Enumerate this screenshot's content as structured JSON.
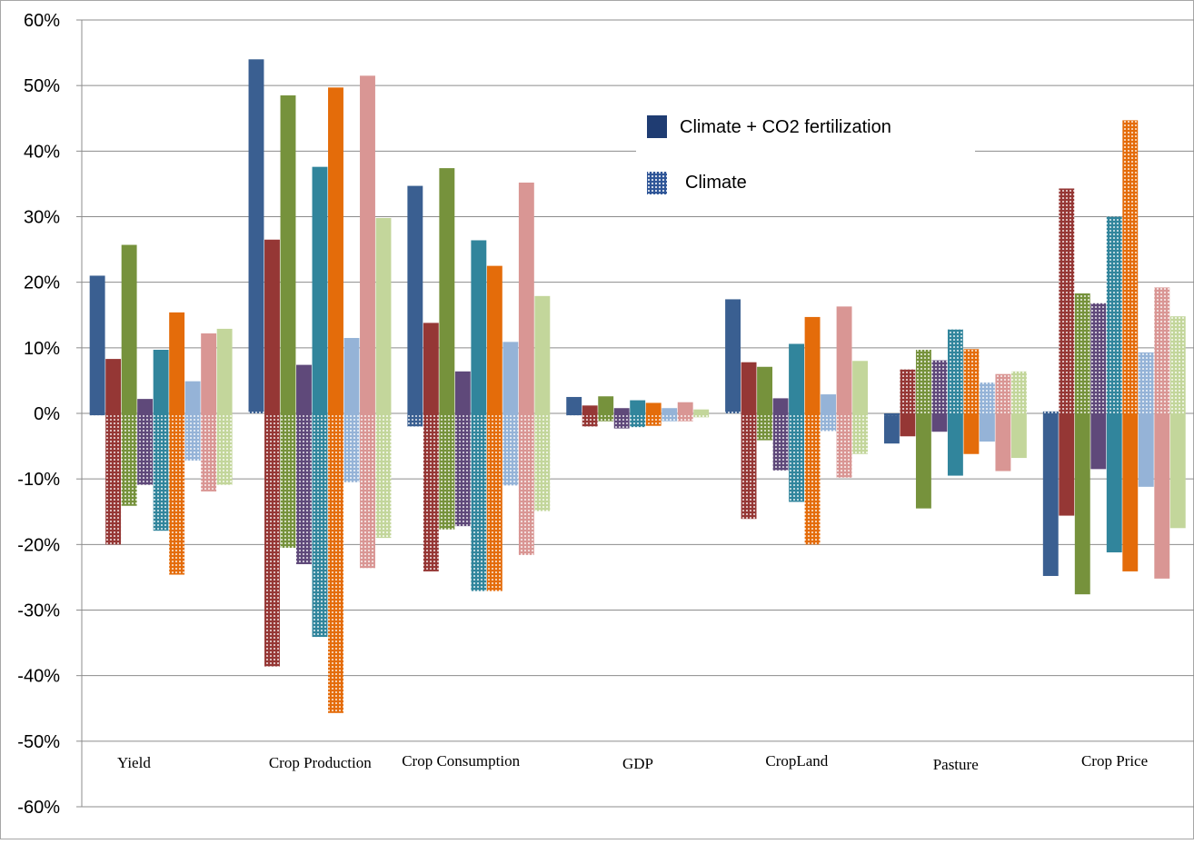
{
  "chart_data": {
    "type": "bar",
    "title": "",
    "xlabel": "",
    "ylabel": "",
    "ylim": [
      -0.6,
      0.6
    ],
    "yticks": [
      "60%",
      "50%",
      "40%",
      "30%",
      "20%",
      "10%",
      "0%",
      "-10%",
      "-20%",
      "-30%",
      "-40%",
      "-50%",
      "-60%"
    ],
    "categories": [
      "Yield",
      "Crop Production",
      "Crop Consumption",
      "GDP",
      "CropLand",
      "Pasture",
      "Crop Price"
    ],
    "grid": "horizontal",
    "legend": {
      "placement": "top-right",
      "entries": [
        "Climate + CO2 fertilization",
        "Climate"
      ]
    },
    "series_colors": [
      "#3A5F91",
      "#953735",
      "#76923C",
      "#5F497A",
      "#31859C",
      "#E46C0A",
      "#95B3D7",
      "#D99694",
      "#C3D69B"
    ],
    "series": [
      {
        "name": "Climate + CO2 fertilization",
        "style": "solid",
        "values": [
          [
            0.21,
            0.083,
            0.257,
            0.022,
            0.097,
            0.154,
            0.049,
            0.122,
            0.129
          ],
          [
            0.54,
            0.265,
            0.485,
            0.074,
            0.376,
            0.497,
            0.115,
            0.515,
            0.298
          ],
          [
            0.347,
            0.138,
            0.374,
            0.064,
            0.264,
            0.225,
            0.109,
            0.352,
            0.179
          ],
          [
            0.025,
            0.012,
            0.026,
            0.008,
            0.02,
            0.016,
            0.008,
            0.017,
            0.006
          ],
          [
            0.174,
            0.078,
            0.071,
            0.023,
            0.106,
            0.147,
            0.029,
            0.163,
            0.08
          ],
          [
            -0.046,
            -0.035,
            -0.145,
            -0.028,
            -0.095,
            -0.062,
            -0.043,
            -0.088,
            -0.068
          ],
          [
            -0.248,
            -0.156,
            -0.276,
            -0.085,
            -0.212,
            -0.241,
            -0.112,
            -0.252,
            -0.175
          ]
        ]
      },
      {
        "name": "Climate",
        "style": "dotted",
        "values": [
          [
            -0.003,
            -0.2,
            -0.141,
            -0.109,
            -0.179,
            -0.246,
            -0.072,
            -0.119,
            -0.109
          ],
          [
            0.005,
            -0.386,
            -0.205,
            -0.23,
            -0.341,
            -0.457,
            -0.105,
            -0.236,
            -0.19
          ],
          [
            -0.02,
            -0.241,
            -0.177,
            -0.172,
            -0.271,
            -0.271,
            -0.11,
            -0.216,
            -0.149
          ],
          [
            -0.003,
            -0.02,
            -0.012,
            -0.023,
            -0.021,
            -0.019,
            -0.012,
            -0.012,
            -0.006
          ],
          [
            0.003,
            -0.161,
            -0.041,
            -0.087,
            -0.135,
            -0.2,
            -0.027,
            -0.098,
            -0.062
          ],
          [
            -0.003,
            0.067,
            0.097,
            0.081,
            0.128,
            0.098,
            0.047,
            0.06,
            0.064
          ],
          [
            0.003,
            0.343,
            0.183,
            0.168,
            0.3,
            0.447,
            0.093,
            0.192,
            0.148
          ]
        ]
      }
    ]
  }
}
